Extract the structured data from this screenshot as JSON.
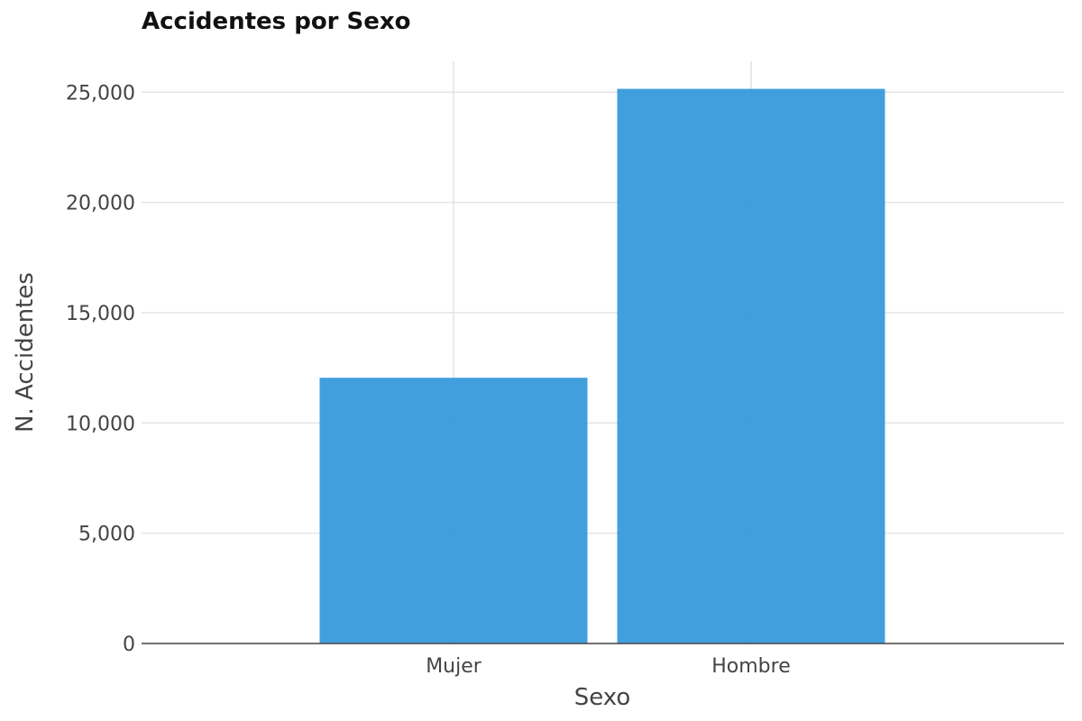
{
  "chart_data": {
    "type": "bar",
    "title": "Accidentes por Sexo",
    "xlabel": "Sexo",
    "ylabel": "N. Accidentes",
    "categories": [
      "Mujer",
      "Hombre"
    ],
    "values": [
      12050,
      25150
    ],
    "ylim": [
      0,
      26400
    ],
    "yticks": [
      0,
      5000,
      10000,
      15000,
      20000,
      25000
    ],
    "ytick_labels": [
      "0",
      "5,000",
      "10,000",
      "15,000",
      "20,000",
      "25,000"
    ],
    "bar_color": "#3498db",
    "grid": true,
    "legend": "none"
  }
}
